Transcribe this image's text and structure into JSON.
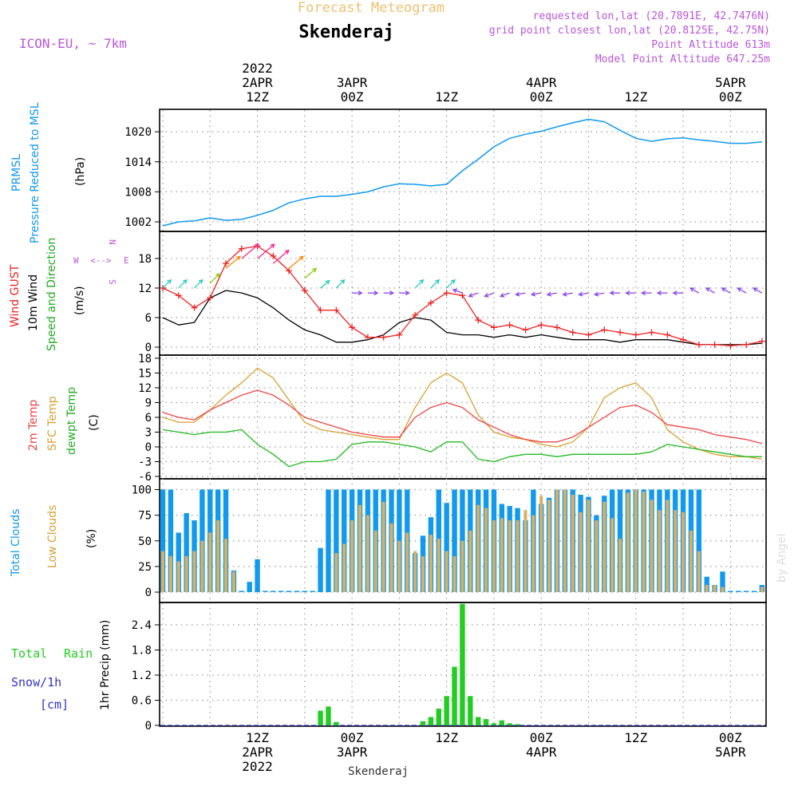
{
  "header": {
    "forecast_title": "Forecast Meteogram",
    "location": "Skenderaj",
    "model": "ICON-EU, ~ 7km",
    "requested": "requested lon,lat (20.7891E, 42.7476N)",
    "gridpoint": "grid point closest lon,lat (20.8125E, 42.75N)",
    "point_alt": "Point Altitude 613m",
    "model_alt": "Model Point Altitude 647.25m",
    "bottom_location": "Skenderaj",
    "watermark": "by Angel"
  },
  "colors": {
    "pressure": "#1199ee",
    "gust": "#ee2222",
    "wind": "#000000",
    "temp": "#ee4444",
    "sfc": "#d9a030",
    "dew": "#22bb22",
    "total_cloud": "#1199ee",
    "low_cloud": "#d9b060",
    "rain": "#22cc22",
    "snow": "#3333cc",
    "purple": "#bb55dd",
    "title_orange": "#f0c070"
  },
  "time_axis": {
    "top": [
      {
        "t": 12,
        "lines": [
          "2022",
          "2APR",
          "12Z"
        ]
      },
      {
        "t": 24,
        "lines": [
          "3APR",
          "00Z"
        ]
      },
      {
        "t": 36,
        "lines": [
          "12Z"
        ]
      },
      {
        "t": 48,
        "lines": [
          "4APR",
          "00Z"
        ]
      },
      {
        "t": 60,
        "lines": [
          "12Z"
        ]
      },
      {
        "t": 72,
        "lines": [
          "5APR",
          "00Z"
        ]
      }
    ],
    "bottom": [
      {
        "t": 12,
        "lines": [
          "12Z",
          "2APR",
          "2022"
        ]
      },
      {
        "t": 24,
        "lines": [
          "00Z",
          "3APR"
        ]
      },
      {
        "t": 36,
        "lines": [
          "12Z"
        ]
      },
      {
        "t": 48,
        "lines": [
          "00Z",
          "4APR"
        ]
      },
      {
        "t": 60,
        "lines": [
          "12Z"
        ]
      },
      {
        "t": 72,
        "lines": [
          "00Z",
          "5APR"
        ]
      }
    ]
  },
  "panels": {
    "pressure": {
      "labels": [
        "PRMSL",
        "Pressure Reduced to MSL"
      ],
      "unit": "(hPa)",
      "ticks": [
        "1002",
        "1008",
        "1014",
        "1020"
      ]
    },
    "wind": {
      "labels": [
        "Wind GUST",
        "10m Wind",
        "Speed and Direction"
      ],
      "unit": "(m/s)",
      "ticks": [
        "0",
        "6",
        "12",
        "18"
      ],
      "compass": {
        "w": "W",
        "e": "E",
        "n": "N",
        "s": "S"
      }
    },
    "temp": {
      "labels": [
        "2m Temp",
        "SFC Temp",
        "dewpt Temp"
      ],
      "unit": "(C)",
      "ticks": [
        "-6",
        "-3",
        "0",
        "3",
        "6",
        "9",
        "12",
        "15",
        "18"
      ]
    },
    "cloud": {
      "labels": [
        "Total Clouds",
        "Low Clouds"
      ],
      "unit": "(%)",
      "ticks": [
        "0",
        "25",
        "50",
        "75",
        "100"
      ]
    },
    "precip": {
      "labels": [
        "Total",
        "Rain",
        "Snow/1h",
        "[cm]"
      ],
      "unit": "1hr Precip (mm)",
      "ticks": [
        "0",
        "0.6",
        "1.2",
        "1.8",
        "2.4"
      ]
    }
  },
  "chart_data": [
    {
      "type": "line",
      "ylabel": "(hPa)",
      "ylim": [
        999,
        1025
      ],
      "x": [
        0,
        2,
        4,
        6,
        8,
        10,
        12,
        14,
        16,
        18,
        20,
        22,
        24,
        26,
        28,
        30,
        32,
        34,
        36,
        38,
        40,
        42,
        44,
        46,
        48,
        50,
        52,
        54,
        56,
        58,
        60,
        62,
        64,
        66,
        68,
        70,
        72,
        74,
        76
      ],
      "series": [
        {
          "name": "PRMSL",
          "values": [
            1001.2,
            1002,
            1002.2,
            1002.8,
            1002.3,
            1002.5,
            1003.3,
            1004.3,
            1005.8,
            1006.6,
            1007.1,
            1007.1,
            1007.5,
            1008,
            1009,
            1009.6,
            1009.5,
            1009.2,
            1009.5,
            1012.2,
            1014.5,
            1017,
            1018.7,
            1019.5,
            1020.1,
            1021,
            1021.8,
            1022.5,
            1022,
            1020.3,
            1018.7,
            1018.1,
            1018.6,
            1018.8,
            1018.4,
            1018.1,
            1017.7,
            1017.7,
            1018
          ]
        }
      ]
    },
    {
      "type": "line",
      "ylabel": "(m/s)",
      "ylim": [
        -1,
        22
      ],
      "x": [
        0,
        2,
        4,
        6,
        8,
        10,
        12,
        14,
        16,
        18,
        20,
        22,
        24,
        26,
        28,
        30,
        32,
        34,
        36,
        38,
        40,
        42,
        44,
        46,
        48,
        50,
        52,
        54,
        56,
        58,
        60,
        62,
        64,
        66,
        68,
        70,
        72,
        74,
        76
      ],
      "series": [
        {
          "name": "Wind GUST",
          "values": [
            12,
            10.5,
            8,
            10,
            17,
            20,
            20.5,
            18.5,
            15.5,
            11.5,
            7.5,
            7.5,
            4,
            2,
            2,
            2.5,
            6.5,
            9,
            11,
            10.5,
            5.5,
            4,
            4.5,
            3.5,
            4.5,
            4,
            3,
            2.5,
            3.5,
            3,
            2.5,
            3,
            2.5,
            1.5,
            0.5,
            0.5,
            0.3,
            0.5,
            1.2
          ]
        },
        {
          "name": "10m Wind",
          "values": [
            6,
            4.5,
            5,
            10,
            11.5,
            11,
            10,
            8,
            5.5,
            3.5,
            2.5,
            1,
            1,
            1.5,
            2.5,
            5,
            6,
            5.5,
            3,
            2.5,
            2.5,
            2,
            2.5,
            2,
            2.5,
            2,
            1.5,
            1.5,
            1.5,
            1,
            1.5,
            1.5,
            1.5,
            1,
            0.5,
            0.5,
            0.5,
            0.5,
            0.8
          ]
        }
      ],
      "wind_barbs": [
        {
          "t": 0,
          "dir": 45,
          "speed": 12
        },
        {
          "t": 2,
          "dir": 45,
          "speed": 12
        },
        {
          "t": 4,
          "dir": 45,
          "speed": 12
        },
        {
          "t": 6,
          "dir": 45,
          "speed": 13
        },
        {
          "t": 8,
          "dir": 40,
          "speed": 16
        },
        {
          "t": 10,
          "dir": 40,
          "speed": 18
        },
        {
          "t": 12,
          "dir": 40,
          "speed": 18
        },
        {
          "t": 14,
          "dir": 40,
          "speed": 17
        },
        {
          "t": 16,
          "dir": 40,
          "speed": 16
        },
        {
          "t": 18,
          "dir": 40,
          "speed": 14
        },
        {
          "t": 20,
          "dir": 40,
          "speed": 12
        },
        {
          "t": 22,
          "dir": 45,
          "speed": 12
        },
        {
          "t": 24,
          "dir": 0,
          "speed": 11
        },
        {
          "t": 26,
          "dir": 0,
          "speed": 11
        },
        {
          "t": 28,
          "dir": 0,
          "speed": 11
        },
        {
          "t": 30,
          "dir": 0,
          "speed": 11
        },
        {
          "t": 32,
          "dir": 45,
          "speed": 12
        },
        {
          "t": 34,
          "dir": 45,
          "speed": 12
        },
        {
          "t": 36,
          "dir": 45,
          "speed": 12
        },
        {
          "t": 38,
          "dir": 160,
          "speed": 11
        },
        {
          "t": 40,
          "dir": 200,
          "speed": 11
        },
        {
          "t": 42,
          "dir": 200,
          "speed": 11
        },
        {
          "t": 44,
          "dir": 200,
          "speed": 11
        },
        {
          "t": 46,
          "dir": 190,
          "speed": 11
        },
        {
          "t": 48,
          "dir": 190,
          "speed": 11
        },
        {
          "t": 50,
          "dir": 190,
          "speed": 11
        },
        {
          "t": 52,
          "dir": 190,
          "speed": 11
        },
        {
          "t": 54,
          "dir": 190,
          "speed": 11
        },
        {
          "t": 56,
          "dir": 190,
          "speed": 11
        },
        {
          "t": 58,
          "dir": 180,
          "speed": 11
        },
        {
          "t": 60,
          "dir": 180,
          "speed": 11
        },
        {
          "t": 62,
          "dir": 180,
          "speed": 11
        },
        {
          "t": 64,
          "dir": 180,
          "speed": 11
        },
        {
          "t": 66,
          "dir": 180,
          "speed": 11
        },
        {
          "t": 68,
          "dir": 150,
          "speed": 11
        },
        {
          "t": 70,
          "dir": 150,
          "speed": 11
        },
        {
          "t": 72,
          "dir": 150,
          "speed": 11
        },
        {
          "t": 74,
          "dir": 150,
          "speed": 11
        },
        {
          "t": 76,
          "dir": 150,
          "speed": 11
        }
      ]
    },
    {
      "type": "line",
      "ylabel": "(C)",
      "ylim": [
        -6,
        18
      ],
      "x": [
        0,
        2,
        4,
        6,
        8,
        10,
        12,
        14,
        16,
        18,
        20,
        22,
        24,
        26,
        28,
        30,
        32,
        34,
        36,
        38,
        40,
        42,
        44,
        46,
        48,
        50,
        52,
        54,
        56,
        58,
        60,
        62,
        64,
        66,
        68,
        70,
        72,
        74,
        76
      ],
      "series": [
        {
          "name": "2m Temp",
          "values": [
            7,
            6,
            5.5,
            7.5,
            9,
            10.5,
            11.5,
            10.5,
            8.5,
            6,
            5,
            4,
            3,
            2.5,
            2,
            2,
            6,
            8,
            9,
            8,
            5.5,
            4,
            2.5,
            1.5,
            1,
            1,
            2,
            4,
            6,
            8,
            8.5,
            7,
            4.5,
            4,
            3.5,
            2.5,
            2,
            1.5,
            0.7
          ]
        },
        {
          "name": "SFC Temp",
          "values": [
            6,
            5,
            5,
            7.5,
            10.5,
            13,
            16,
            14,
            9.5,
            5,
            3.5,
            3,
            2.5,
            2,
            1.5,
            1.5,
            8,
            13,
            15,
            13,
            6.5,
            3,
            2,
            1.5,
            0.5,
            0,
            1,
            4,
            10,
            12,
            13,
            10,
            3.5,
            1,
            -0.5,
            -1.5,
            -2,
            -2,
            -2.5
          ]
        },
        {
          "name": "dewpt Temp",
          "values": [
            3.5,
            3,
            2.5,
            3,
            3,
            3.5,
            0.5,
            -1.5,
            -4,
            -3,
            -3,
            -2.5,
            0.5,
            1,
            1,
            0.5,
            0,
            -1,
            1,
            1,
            -2.5,
            -3,
            -2,
            -1.5,
            -1.5,
            -2,
            -1.5,
            -1.5,
            -1.5,
            -1.5,
            -1.5,
            -1,
            0.5,
            0,
            -0.5,
            -1,
            -1.5,
            -2,
            -2
          ]
        }
      ]
    },
    {
      "type": "bar",
      "ylabel": "(%)",
      "ylim": [
        0,
        100
      ],
      "x": [
        0,
        1,
        2,
        3,
        4,
        5,
        6,
        7,
        8,
        9,
        10,
        11,
        12,
        13,
        14,
        15,
        16,
        17,
        18,
        19,
        20,
        21,
        22,
        23,
        24,
        25,
        26,
        27,
        28,
        29,
        30,
        31,
        32,
        33,
        34,
        35,
        36,
        37,
        38,
        39,
        40,
        41,
        42,
        43,
        44,
        45,
        46,
        47,
        48,
        49,
        50,
        51,
        52,
        53,
        54,
        55,
        56,
        57,
        58,
        59,
        60,
        61,
        62,
        63,
        64,
        65,
        66,
        67,
        68,
        69,
        70,
        71,
        72,
        73,
        74,
        75,
        76
      ],
      "series": [
        {
          "name": "Total Clouds",
          "values": [
            100,
            100,
            58,
            77,
            70,
            100,
            100,
            100,
            100,
            21,
            0,
            10,
            32,
            0,
            0,
            0,
            0,
            0,
            0,
            0,
            43,
            100,
            100,
            100,
            100,
            100,
            100,
            100,
            100,
            100,
            100,
            100,
            38,
            55,
            73,
            100,
            87,
            100,
            100,
            100,
            100,
            100,
            100,
            86,
            84,
            82,
            70,
            100,
            86,
            92,
            100,
            100,
            100,
            95,
            93,
            75,
            94,
            100,
            100,
            100,
            100,
            100,
            100,
            100,
            100,
            100,
            100,
            100,
            100,
            15,
            7,
            20,
            0,
            0,
            0,
            0,
            7
          ]
        },
        {
          "name": "Low Clouds",
          "values": [
            40,
            35,
            30,
            35,
            40,
            50,
            58,
            70,
            52,
            20,
            0,
            0,
            0,
            0,
            0,
            0,
            0,
            0,
            0,
            0,
            0,
            0,
            38,
            47,
            70,
            85,
            75,
            60,
            88,
            67,
            50,
            58,
            40,
            35,
            56,
            52,
            40,
            35,
            50,
            60,
            85,
            82,
            70,
            72,
            70,
            70,
            80,
            75,
            94,
            90,
            100,
            100,
            95,
            78,
            90,
            70,
            88,
            72,
            52,
            97,
            100,
            98,
            90,
            80,
            90,
            80,
            78,
            60,
            40,
            7,
            7,
            5,
            0,
            0,
            0,
            0,
            5
          ]
        }
      ]
    },
    {
      "type": "bar",
      "ylabel": "1hr Precip (mm)",
      "ylim": [
        0,
        3.0
      ],
      "x": [
        20,
        21,
        22,
        33,
        34,
        35,
        36,
        37,
        38,
        39,
        40,
        41,
        42,
        43,
        44,
        45
      ],
      "series": [
        {
          "name": "Rain",
          "values": [
            0.35,
            0.45,
            0.08,
            0.1,
            0.2,
            0.4,
            0.7,
            1.4,
            2.9,
            0.7,
            0.2,
            0.15,
            0.05,
            0.12,
            0.05,
            0.03
          ]
        },
        {
          "name": "Snow/1h",
          "values": [
            0,
            0,
            0,
            0,
            0,
            0,
            0,
            0,
            0,
            0,
            0,
            0,
            0,
            0,
            0,
            0
          ]
        }
      ]
    }
  ]
}
